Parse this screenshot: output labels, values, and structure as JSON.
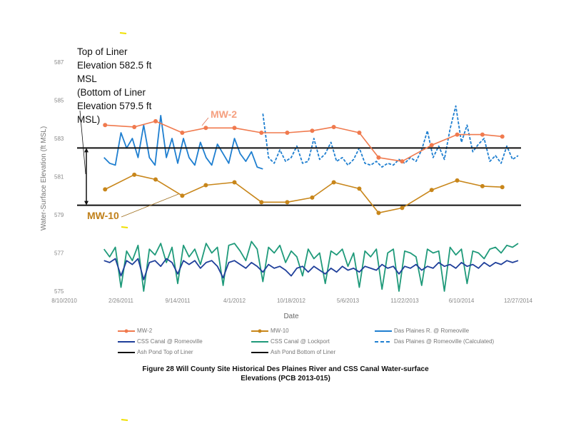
{
  "chart_data": {
    "type": "line",
    "title": "Figure 28   Will County Site Historical Des Plaines River and CSS Canal Water-surface Elevations (PCB 2013-015)",
    "xlabel": "Date",
    "ylabel": "Water-Surface Elevation (ft MSL)",
    "x_unit": "days since 8/10/2010",
    "xlim": [
      0,
      1600
    ],
    "ylim": [
      575,
      587
    ],
    "x_ticks": [
      {
        "d": 0,
        "label": "8/10/2010"
      },
      {
        "d": 200,
        "label": "2/26/2011"
      },
      {
        "d": 400,
        "label": "9/14/2011"
      },
      {
        "d": 600,
        "label": "4/1/2012"
      },
      {
        "d": 800,
        "label": "10/18/2012"
      },
      {
        "d": 1000,
        "label": "5/6/2013"
      },
      {
        "d": 1200,
        "label": "11/22/2013"
      },
      {
        "d": 1400,
        "label": "6/10/2014"
      },
      {
        "d": 1600,
        "label": "12/27/2014"
      }
    ],
    "y_ticks": [
      575,
      577,
      579,
      581,
      583,
      585,
      587
    ],
    "legend_placement": "bottom",
    "series": [
      {
        "name": "MW-2",
        "color": "#f07a4e",
        "style": "line-marker",
        "x": [
          144,
          247,
          322,
          416,
          499,
          600,
          695,
          786,
          874,
          950,
          1040,
          1108,
          1191,
          1295,
          1385,
          1474,
          1544
        ],
        "values": [
          583.7,
          583.6,
          583.9,
          583.3,
          583.55,
          583.55,
          583.3,
          583.3,
          583.4,
          583.6,
          583.3,
          582.0,
          581.8,
          582.65,
          583.2,
          583.2,
          583.1
        ]
      },
      {
        "name": "MW-10",
        "color": "#c8861a",
        "style": "line-marker",
        "x": [
          144,
          247,
          322,
          416,
          499,
          600,
          695,
          786,
          874,
          950,
          1040,
          1108,
          1191,
          1295,
          1385,
          1474,
          1544
        ],
        "values": [
          580.33,
          581.1,
          580.85,
          580.0,
          580.55,
          580.7,
          579.66,
          579.66,
          579.9,
          580.7,
          580.37,
          579.1,
          579.36,
          580.3,
          580.8,
          580.5,
          580.45
        ]
      },
      {
        "name": "Das Plaines R. @ Romeoville",
        "color": "#1f7fd0",
        "style": "solid",
        "x_start": 140,
        "x_step": 20,
        "values": [
          582,
          581.7,
          581.6,
          583.3,
          582.5,
          583,
          582,
          583.7,
          582,
          581.6,
          584.2,
          582,
          583,
          581.7,
          583,
          582,
          581.6,
          582.8,
          582,
          581.6,
          582.7,
          582.2,
          581.7,
          583,
          582.2,
          581.8,
          582.3,
          581.5,
          581.4
        ]
      },
      {
        "name": "CSS Canal @ Romeoville",
        "color": "#1f3f9a",
        "style": "solid",
        "x_start": 140,
        "x_step": 20,
        "values": [
          576.6,
          576.5,
          576.7,
          575.8,
          576.6,
          576.4,
          576.7,
          575.6,
          576.5,
          576.6,
          576.3,
          576.7,
          576.5,
          575.9,
          576.6,
          576.4,
          576.6,
          576.2,
          576.5,
          576.6,
          576.3,
          575.7,
          576.5,
          576.6,
          576.4,
          576.2,
          576.5,
          576.3,
          576.0,
          576.4,
          576.2,
          576.3,
          576.1,
          575.8,
          576.2,
          576.3,
          576.0,
          576.3,
          576.1,
          575.9,
          576.2,
          576.0,
          576.3,
          576.1,
          576.2,
          576.0,
          576.3,
          576.2,
          576.1,
          576.4,
          576.2,
          576.3,
          575.9,
          576.3,
          576.2,
          576.4,
          576.1,
          576.3,
          576.2,
          576.5,
          576.3,
          576.4,
          576.2,
          576.5,
          576.3,
          576.4,
          576.2,
          576.5,
          576.3,
          576.5,
          576.4,
          576.6,
          576.5,
          576.6
        ]
      },
      {
        "name": "CSS Canal @ Lockport",
        "color": "#1f9a7a",
        "style": "solid",
        "x_start": 140,
        "x_step": 20,
        "values": [
          577.2,
          576.8,
          577.3,
          575.2,
          577.1,
          576.6,
          577.4,
          575.0,
          577.2,
          576.9,
          577.5,
          576.5,
          577.3,
          575.4,
          577.4,
          576.8,
          577.2,
          576.4,
          577.5,
          577.0,
          577.3,
          575.3,
          577.4,
          577.5,
          577.1,
          576.6,
          577.6,
          577.2,
          575.5,
          577.3,
          577.0,
          577.4,
          576.5,
          577.1,
          576.8,
          575.8,
          577.2,
          576.7,
          577.0,
          575.4,
          577.1,
          576.9,
          577.2,
          576.3,
          577.0,
          575.2,
          577.1,
          576.8,
          577.2,
          575.1,
          577.0,
          577.2,
          575.0,
          577.1,
          577.0,
          576.8,
          575.3,
          577.2,
          577.0,
          577.1,
          575.0,
          577.3,
          576.9,
          577.2,
          575.4,
          577.1,
          577.0,
          576.7,
          577.2,
          577.3,
          577.0,
          577.4,
          577.3,
          577.5
        ]
      },
      {
        "name": "Das Plaines @ Romeoville (Calculated)",
        "color": "#1f7fd0",
        "style": "dashed",
        "x_start": 700,
        "x_step": 20,
        "values": [
          584.3,
          582,
          581.7,
          582.4,
          581.8,
          582,
          582.6,
          581.7,
          581.8,
          583,
          581.9,
          582.2,
          582.8,
          581.8,
          582,
          581.6,
          581.9,
          582.5,
          581.7,
          581.6,
          581.8,
          581.5,
          581.7,
          581.6,
          581.9,
          581.7,
          582,
          581.8,
          582.4,
          583.4,
          582,
          582.6,
          581.9,
          583.5,
          584.7,
          582.8,
          583.7,
          582.3,
          582.7,
          583,
          581.8,
          582.1,
          581.7,
          582.6,
          581.9,
          582.1
        ]
      },
      {
        "name": "Ash Pond Top of Liner",
        "color": "#111111",
        "style": "hline",
        "value": 582.5
      },
      {
        "name": "Ash Pond Bottom of Liner",
        "color": "#111111",
        "style": "hline",
        "value": 579.5
      }
    ],
    "annotations": {
      "liner_text_1": "Top of Liner",
      "liner_text_2": "Elevation 582.5 ft",
      "liner_text_3": "MSL",
      "liner_text_4": "(Bottom of Liner",
      "liner_text_5": "Elevation 579.5 ft",
      "liner_text_6": "MSL)",
      "mw2_label": "MW-2",
      "mw10_label": "MW-10"
    },
    "caption_line1": "Figure 28   Will County Site Historical Des Plaines River and CSS Canal Water-surface",
    "caption_line2": "Elevations (PCB 2013-015)"
  }
}
